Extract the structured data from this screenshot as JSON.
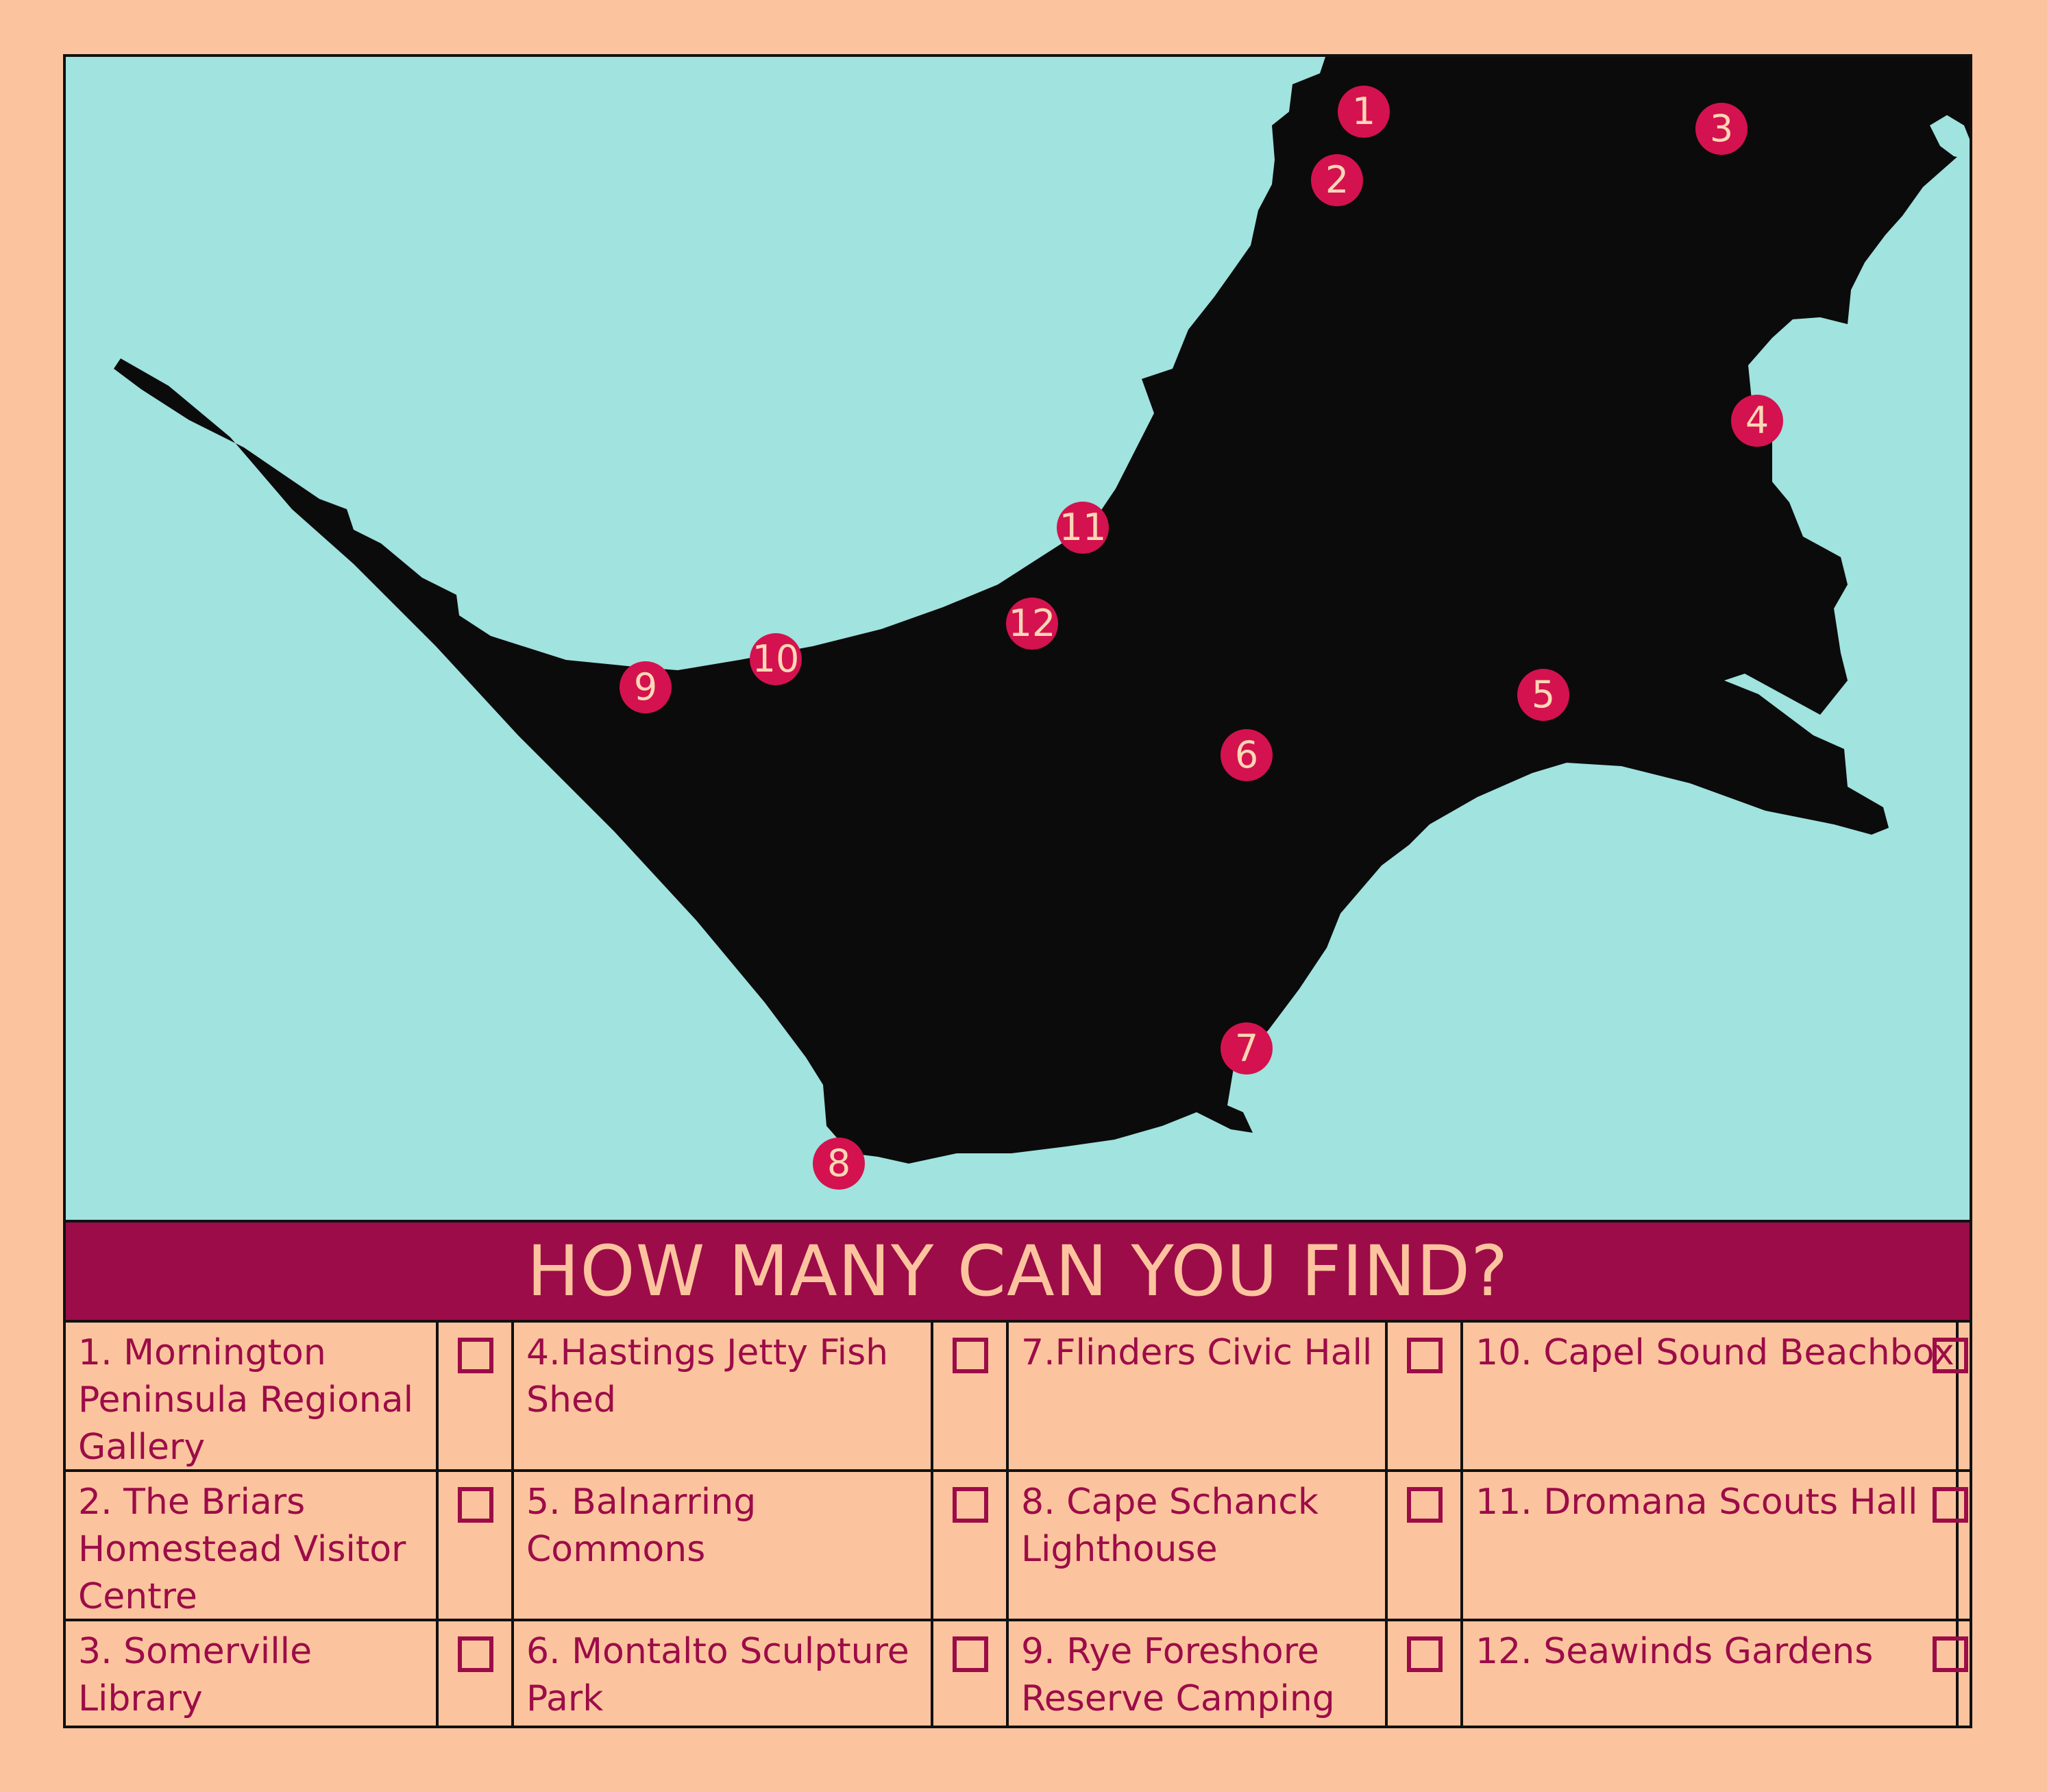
{
  "title": "HOW MANY CAN YOU FIND?",
  "colors": {
    "background": "#FCC49E",
    "water": "#A0E3DF",
    "land": "#0B0B0B",
    "marker": "#D4124F",
    "accent": "#9C0C48"
  },
  "markers": [
    {
      "number": "1"
    },
    {
      "number": "2"
    },
    {
      "number": "3"
    },
    {
      "number": "4"
    },
    {
      "number": "5"
    },
    {
      "number": "6"
    },
    {
      "number": "7"
    },
    {
      "number": "8"
    },
    {
      "number": "9"
    },
    {
      "number": "10"
    },
    {
      "number": "11"
    },
    {
      "number": "12"
    }
  ],
  "checklist": [
    "1. Mornington Peninsula Regional Gallery",
    "2. The Briars Homestead Visitor Centre",
    "3. Somerville Library",
    "4.Hastings Jetty Fish Shed",
    "5. Balnarring Commons",
    "6. Montalto Sculpture Park",
    "7.Flinders Civic Hall",
    "8. Cape Schanck Lighthouse",
    "9. Rye Foreshore Reserve Camping",
    "10. Capel Sound Beachbox",
    "11. Dromana Scouts Hall",
    "12. Seawinds Gardens"
  ]
}
